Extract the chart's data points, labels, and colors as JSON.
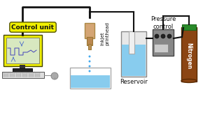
{
  "bg_color": "#ffffff",
  "control_unit_label": "Control unit",
  "control_unit_label_bg": "#f0f000",
  "control_unit_label_border": "#555500",
  "computer_body_color": "#eeee00",
  "computer_screen_bg": "#d8e8c0",
  "computer_base_color": "#222222",
  "computer_keyboard_color": "#dddddd",
  "computer_keyboard_border": "#555555",
  "mouse_color": "#aaaaaa",
  "cable_color": "#111111",
  "printhead_body_color": "#d4a574",
  "printhead_tip_color": "#bb8850",
  "printhead_label": "Inkjet\nprinthead",
  "printhead_label_color": "#111111",
  "droplets_color": "#44aaee",
  "pool_water_color": "#88ccee",
  "pool_border_color": "#888888",
  "pool_bg_color": "#ffffff",
  "reservoir_outer_color": "#cccccc",
  "reservoir_water_color": "#88ccee",
  "reservoir_tube_color": "#eeeeee",
  "reservoir_label": "Reservoir",
  "reservoir_label_color": "#111111",
  "pressure_box_color": "#888888",
  "pressure_box_border": "#555555",
  "pressure_knob_color": "#222222",
  "pressure_screen_color": "#cccccc",
  "pressure_label": "Pressure\ncontrol",
  "pressure_label_color": "#111111",
  "nitrogen_tank_color": "#8B4513",
  "nitrogen_top_color": "#2a8a2a",
  "nitrogen_label": "Nitrogen",
  "nitrogen_label_color": "#ffffff"
}
